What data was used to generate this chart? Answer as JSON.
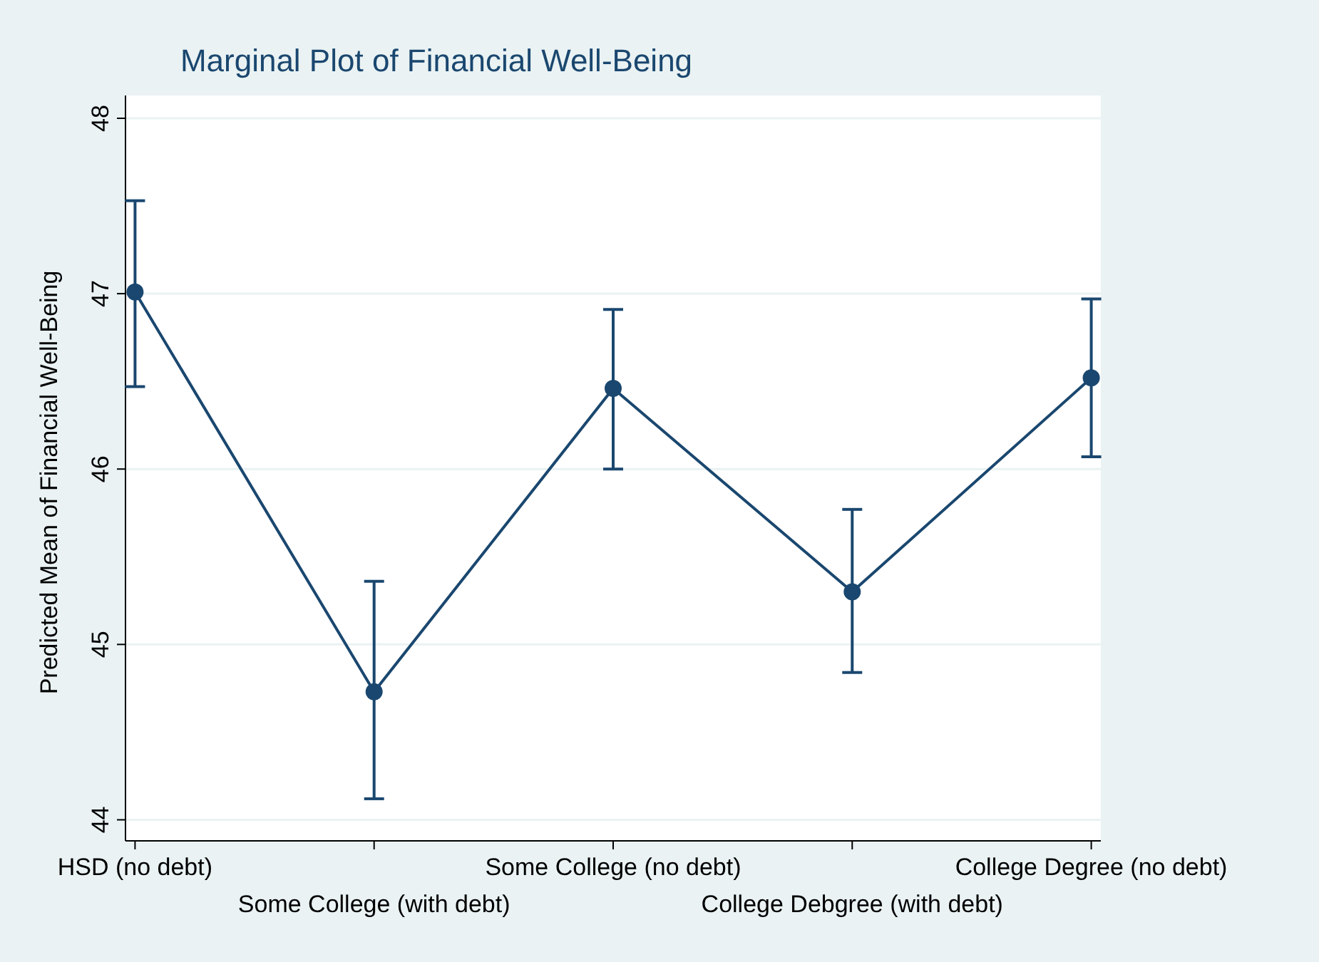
{
  "chart_data": {
    "type": "line",
    "title": "Marginal Plot of Financial Well-Being",
    "ylabel": "Predicted Mean of Financial Well-Being",
    "categories": [
      "HSD (no debt)",
      "Some College (with debt)",
      "Some College (no debt)",
      "College Debgree (with debt)",
      "College Degree (no debt)"
    ],
    "series": [
      {
        "color": "#1a476f",
        "values": [
          47.01,
          44.73,
          46.46,
          45.3,
          46.52
        ],
        "errors": [
          [
            46.47,
            47.53
          ],
          [
            44.12,
            45.36
          ],
          [
            46.0,
            46.91
          ],
          [
            44.84,
            45.77
          ],
          [
            46.07,
            46.97
          ]
        ]
      }
    ],
    "ylim": [
      43.88,
      48.13
    ],
    "yticks": [
      44,
      45,
      46,
      47,
      48
    ],
    "grid": "y",
    "marker": "circle",
    "line_style": "solid"
  }
}
